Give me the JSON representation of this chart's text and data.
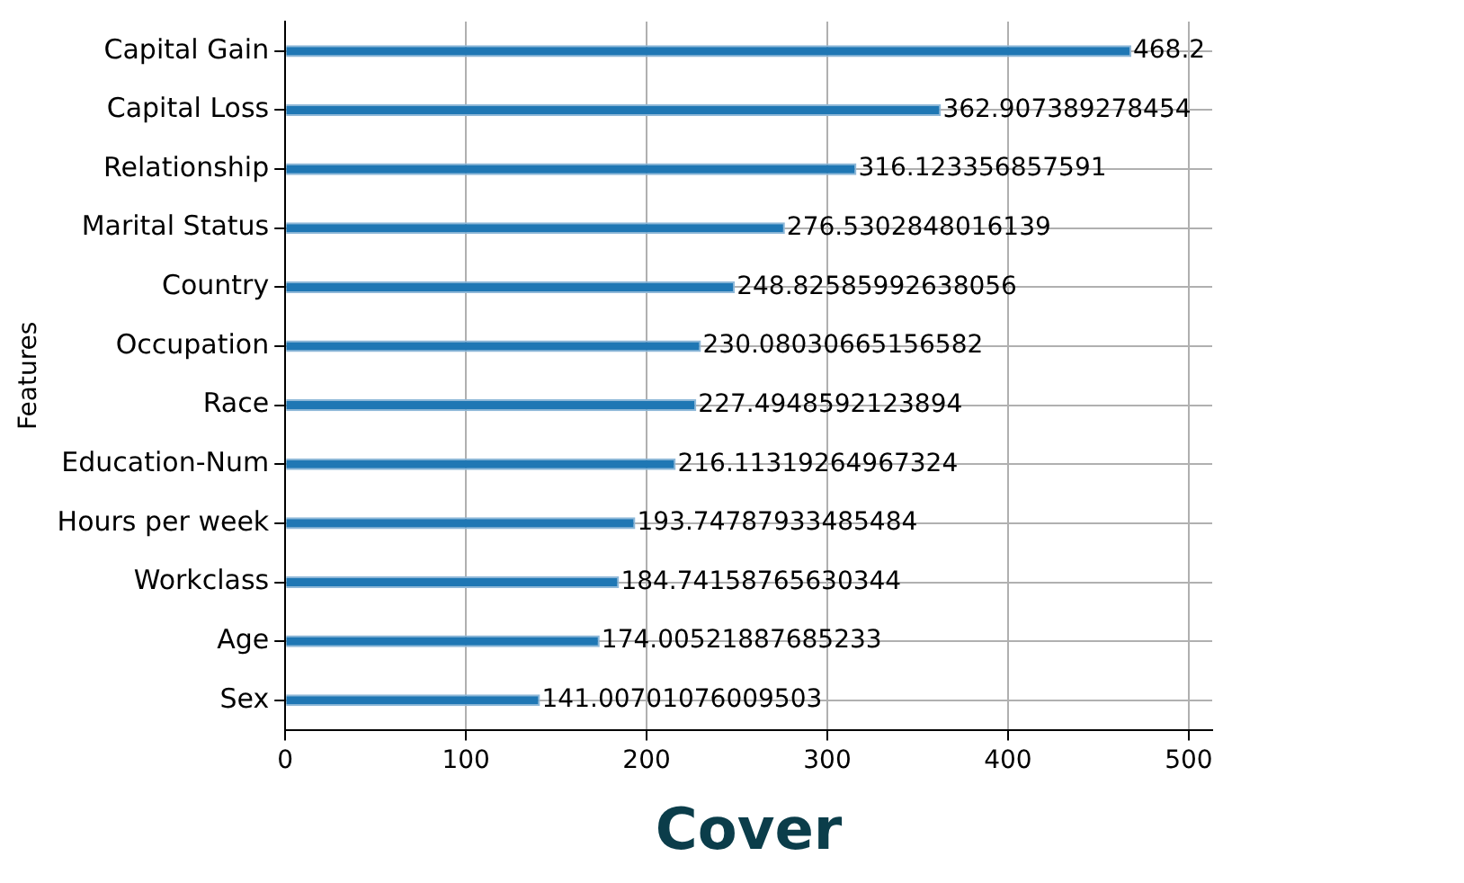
{
  "chart_data": {
    "type": "bar",
    "orientation": "horizontal",
    "xlabel": "Cover",
    "ylabel": "Features",
    "categories": [
      "Capital Gain",
      "Capital Loss",
      "Relationship",
      "Marital Status",
      "Country",
      "Occupation",
      "Race",
      "Education-Num",
      "Hours per week",
      "Workclass",
      "Age",
      "Sex"
    ],
    "values": [
      468.2,
      362.907389278454,
      316.123356857591,
      276.5302848016139,
      248.82585992638056,
      230.08030665156582,
      227.4948592123894,
      216.11319264967324,
      193.74787933485484,
      184.74158765630344,
      174.00521887685233,
      141.00701076009503
    ],
    "color": "#1f77b4",
    "xlim": [
      0,
      513
    ],
    "xticks": [
      0,
      100,
      200,
      300,
      400,
      500
    ],
    "grid": true,
    "data_labels": true,
    "legend": false
  }
}
